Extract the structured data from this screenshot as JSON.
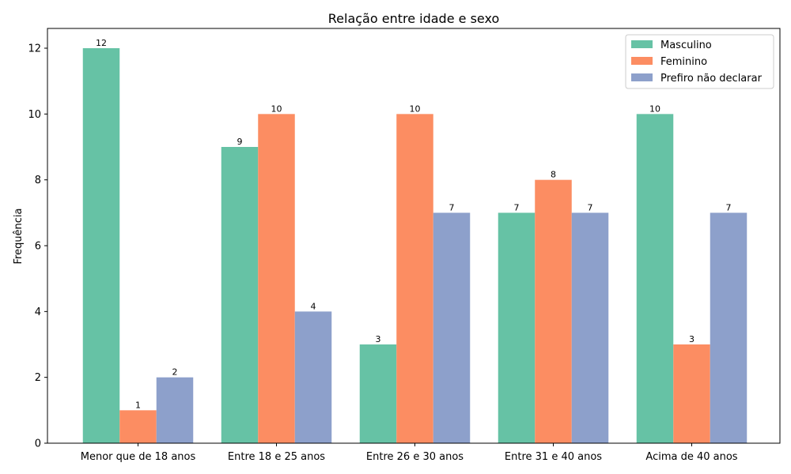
{
  "chart_data": {
    "type": "bar",
    "title": "Relação entre idade e sexo",
    "xlabel": "",
    "ylabel": "Frequência",
    "categories": [
      "Menor que de 18 anos",
      "Entre 18 e 25 anos",
      "Entre 26 e 30 anos",
      "Entre 31 e 40 anos",
      "Acima de 40 anos"
    ],
    "series": [
      {
        "name": "Masculino",
        "values": [
          12,
          9,
          3,
          7,
          10
        ],
        "color": "#66c2a5"
      },
      {
        "name": "Feminino",
        "values": [
          1,
          10,
          10,
          8,
          3
        ],
        "color": "#fc8d62"
      },
      {
        "name": "Prefiro não declarar",
        "values": [
          2,
          4,
          7,
          7,
          7
        ],
        "color": "#8da0cb"
      }
    ],
    "ylim": [
      0,
      12.6
    ],
    "yticks": [
      0,
      2,
      4,
      6,
      8,
      10,
      12
    ],
    "grid": false,
    "legend": "top-right"
  }
}
